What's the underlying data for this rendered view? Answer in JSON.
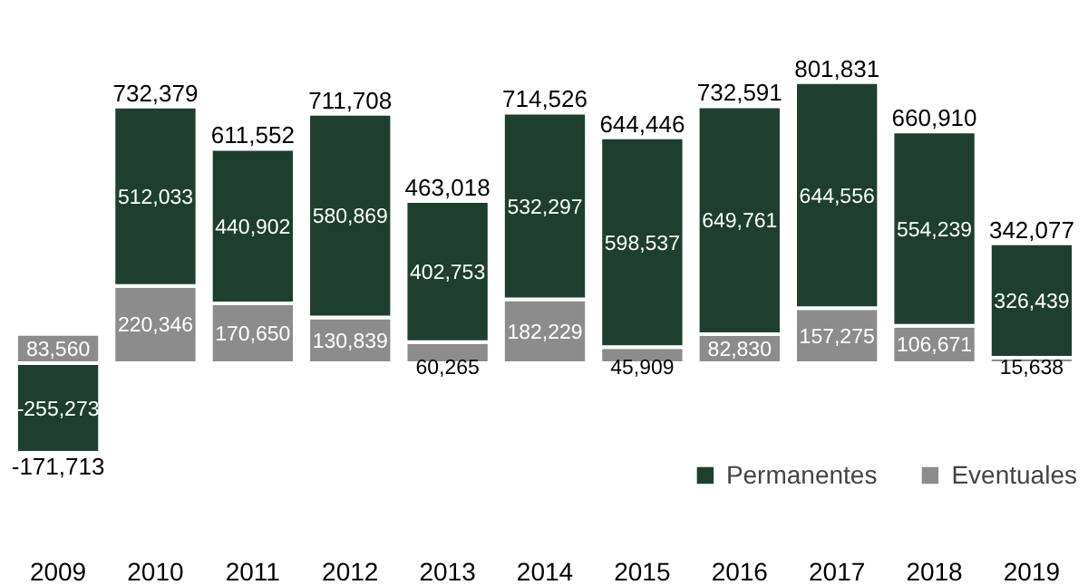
{
  "chart_data": {
    "type": "bar",
    "stacked": true,
    "categories": [
      "2009",
      "2010",
      "2011",
      "2012",
      "2013",
      "2014",
      "2015",
      "2016",
      "2017",
      "2018",
      "2019"
    ],
    "series": [
      {
        "name": "Eventuales",
        "color": "#8c8c8c",
        "values": [
          83560,
          220346,
          170650,
          130839,
          60265,
          182229,
          45909,
          82830,
          157275,
          106671,
          15638
        ],
        "value_labels": [
          "83,560",
          "220,346",
          "170,650",
          "130,839",
          "60,265",
          "182,229",
          "45,909",
          "82,830",
          "157,275",
          "106,671",
          "15,638"
        ]
      },
      {
        "name": "Permanentes",
        "color": "#1e3f2e",
        "values": [
          -255273,
          512033,
          440902,
          580869,
          402753,
          532297,
          598537,
          649761,
          644556,
          554239,
          326439
        ],
        "value_labels": [
          "-255,273",
          "512,033",
          "440,902",
          "580,869",
          "402,753",
          "532,297",
          "598,537",
          "649,761",
          "644,556",
          "554,239",
          "326,439"
        ]
      }
    ],
    "totals": [
      "-171,713",
      "732,379",
      "611,552",
      "711,708",
      "463,018",
      "714,526",
      "644,446",
      "732,591",
      "801,831",
      "660,910",
      "342,077"
    ],
    "legend": "bottom right",
    "grid": false
  }
}
